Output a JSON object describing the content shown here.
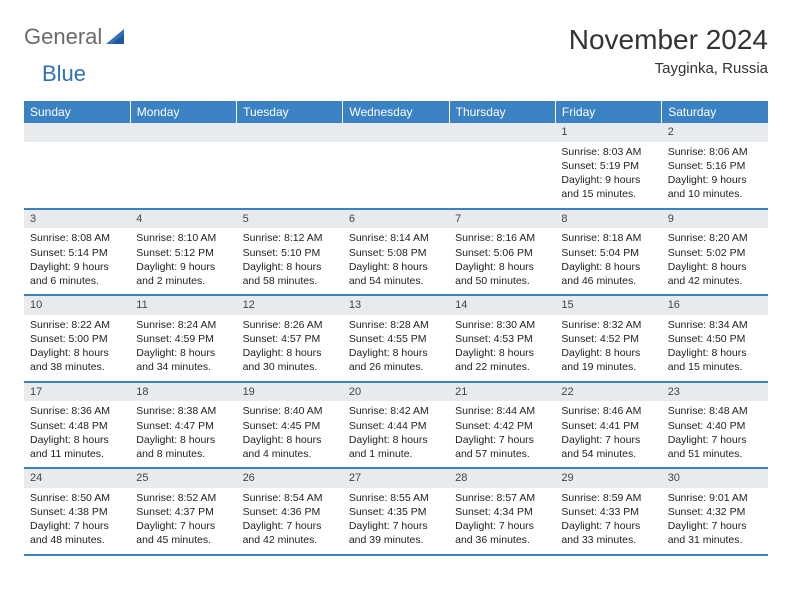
{
  "logo": {
    "text1": "General",
    "text2": "Blue",
    "icon_color": "#2f72b8"
  },
  "title": "November 2024",
  "location": "Tayginka, Russia",
  "header_bg": "#3b82c4",
  "header_fg": "#ffffff",
  "daynum_bg": "#e8ebee",
  "border_color": "#3b82c4",
  "weekdays": [
    "Sunday",
    "Monday",
    "Tuesday",
    "Wednesday",
    "Thursday",
    "Friday",
    "Saturday"
  ],
  "weeks": [
    [
      null,
      null,
      null,
      null,
      null,
      {
        "n": "1",
        "sunrise": "8:03 AM",
        "sunset": "5:19 PM",
        "daylight": "9 hours and 15 minutes."
      },
      {
        "n": "2",
        "sunrise": "8:06 AM",
        "sunset": "5:16 PM",
        "daylight": "9 hours and 10 minutes."
      }
    ],
    [
      {
        "n": "3",
        "sunrise": "8:08 AM",
        "sunset": "5:14 PM",
        "daylight": "9 hours and 6 minutes."
      },
      {
        "n": "4",
        "sunrise": "8:10 AM",
        "sunset": "5:12 PM",
        "daylight": "9 hours and 2 minutes."
      },
      {
        "n": "5",
        "sunrise": "8:12 AM",
        "sunset": "5:10 PM",
        "daylight": "8 hours and 58 minutes."
      },
      {
        "n": "6",
        "sunrise": "8:14 AM",
        "sunset": "5:08 PM",
        "daylight": "8 hours and 54 minutes."
      },
      {
        "n": "7",
        "sunrise": "8:16 AM",
        "sunset": "5:06 PM",
        "daylight": "8 hours and 50 minutes."
      },
      {
        "n": "8",
        "sunrise": "8:18 AM",
        "sunset": "5:04 PM",
        "daylight": "8 hours and 46 minutes."
      },
      {
        "n": "9",
        "sunrise": "8:20 AM",
        "sunset": "5:02 PM",
        "daylight": "8 hours and 42 minutes."
      }
    ],
    [
      {
        "n": "10",
        "sunrise": "8:22 AM",
        "sunset": "5:00 PM",
        "daylight": "8 hours and 38 minutes."
      },
      {
        "n": "11",
        "sunrise": "8:24 AM",
        "sunset": "4:59 PM",
        "daylight": "8 hours and 34 minutes."
      },
      {
        "n": "12",
        "sunrise": "8:26 AM",
        "sunset": "4:57 PM",
        "daylight": "8 hours and 30 minutes."
      },
      {
        "n": "13",
        "sunrise": "8:28 AM",
        "sunset": "4:55 PM",
        "daylight": "8 hours and 26 minutes."
      },
      {
        "n": "14",
        "sunrise": "8:30 AM",
        "sunset": "4:53 PM",
        "daylight": "8 hours and 22 minutes."
      },
      {
        "n": "15",
        "sunrise": "8:32 AM",
        "sunset": "4:52 PM",
        "daylight": "8 hours and 19 minutes."
      },
      {
        "n": "16",
        "sunrise": "8:34 AM",
        "sunset": "4:50 PM",
        "daylight": "8 hours and 15 minutes."
      }
    ],
    [
      {
        "n": "17",
        "sunrise": "8:36 AM",
        "sunset": "4:48 PM",
        "daylight": "8 hours and 11 minutes."
      },
      {
        "n": "18",
        "sunrise": "8:38 AM",
        "sunset": "4:47 PM",
        "daylight": "8 hours and 8 minutes."
      },
      {
        "n": "19",
        "sunrise": "8:40 AM",
        "sunset": "4:45 PM",
        "daylight": "8 hours and 4 minutes."
      },
      {
        "n": "20",
        "sunrise": "8:42 AM",
        "sunset": "4:44 PM",
        "daylight": "8 hours and 1 minute."
      },
      {
        "n": "21",
        "sunrise": "8:44 AM",
        "sunset": "4:42 PM",
        "daylight": "7 hours and 57 minutes."
      },
      {
        "n": "22",
        "sunrise": "8:46 AM",
        "sunset": "4:41 PM",
        "daylight": "7 hours and 54 minutes."
      },
      {
        "n": "23",
        "sunrise": "8:48 AM",
        "sunset": "4:40 PM",
        "daylight": "7 hours and 51 minutes."
      }
    ],
    [
      {
        "n": "24",
        "sunrise": "8:50 AM",
        "sunset": "4:38 PM",
        "daylight": "7 hours and 48 minutes."
      },
      {
        "n": "25",
        "sunrise": "8:52 AM",
        "sunset": "4:37 PM",
        "daylight": "7 hours and 45 minutes."
      },
      {
        "n": "26",
        "sunrise": "8:54 AM",
        "sunset": "4:36 PM",
        "daylight": "7 hours and 42 minutes."
      },
      {
        "n": "27",
        "sunrise": "8:55 AM",
        "sunset": "4:35 PM",
        "daylight": "7 hours and 39 minutes."
      },
      {
        "n": "28",
        "sunrise": "8:57 AM",
        "sunset": "4:34 PM",
        "daylight": "7 hours and 36 minutes."
      },
      {
        "n": "29",
        "sunrise": "8:59 AM",
        "sunset": "4:33 PM",
        "daylight": "7 hours and 33 minutes."
      },
      {
        "n": "30",
        "sunrise": "9:01 AM",
        "sunset": "4:32 PM",
        "daylight": "7 hours and 31 minutes."
      }
    ]
  ],
  "labels": {
    "sunrise": "Sunrise: ",
    "sunset": "Sunset: ",
    "daylight": "Daylight: "
  }
}
